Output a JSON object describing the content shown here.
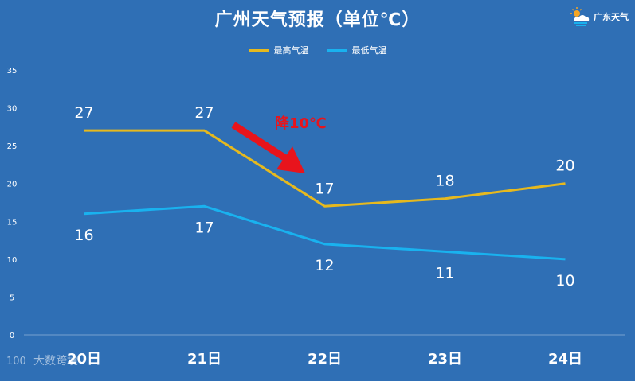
{
  "title": "广州天气预报（单位℃）",
  "logo_text": "广东天气",
  "logo_icon": "sun-cloud-icon",
  "watermark_text": "大数跨境",
  "annotation_text": "降10℃",
  "colors": {
    "background": "#2f6fb5",
    "high": "#e6b91e",
    "low": "#19b2ef",
    "arrow": "#e8141c",
    "axis_text": "#ffffff"
  },
  "chart_data": {
    "type": "line",
    "categories": [
      "20日",
      "21日",
      "22日",
      "23日",
      "24日"
    ],
    "series": [
      {
        "name": "最高气温",
        "values": [
          27,
          27,
          17,
          18,
          20
        ]
      },
      {
        "name": "最低气温",
        "values": [
          16,
          17,
          12,
          11,
          10
        ]
      }
    ],
    "ylim": [
      0,
      35
    ],
    "yticks": [
      0,
      5,
      10,
      15,
      20,
      25,
      30,
      35
    ],
    "grid": false,
    "legend_position": "top-center",
    "title": "广州天气预报（单位℃）"
  }
}
